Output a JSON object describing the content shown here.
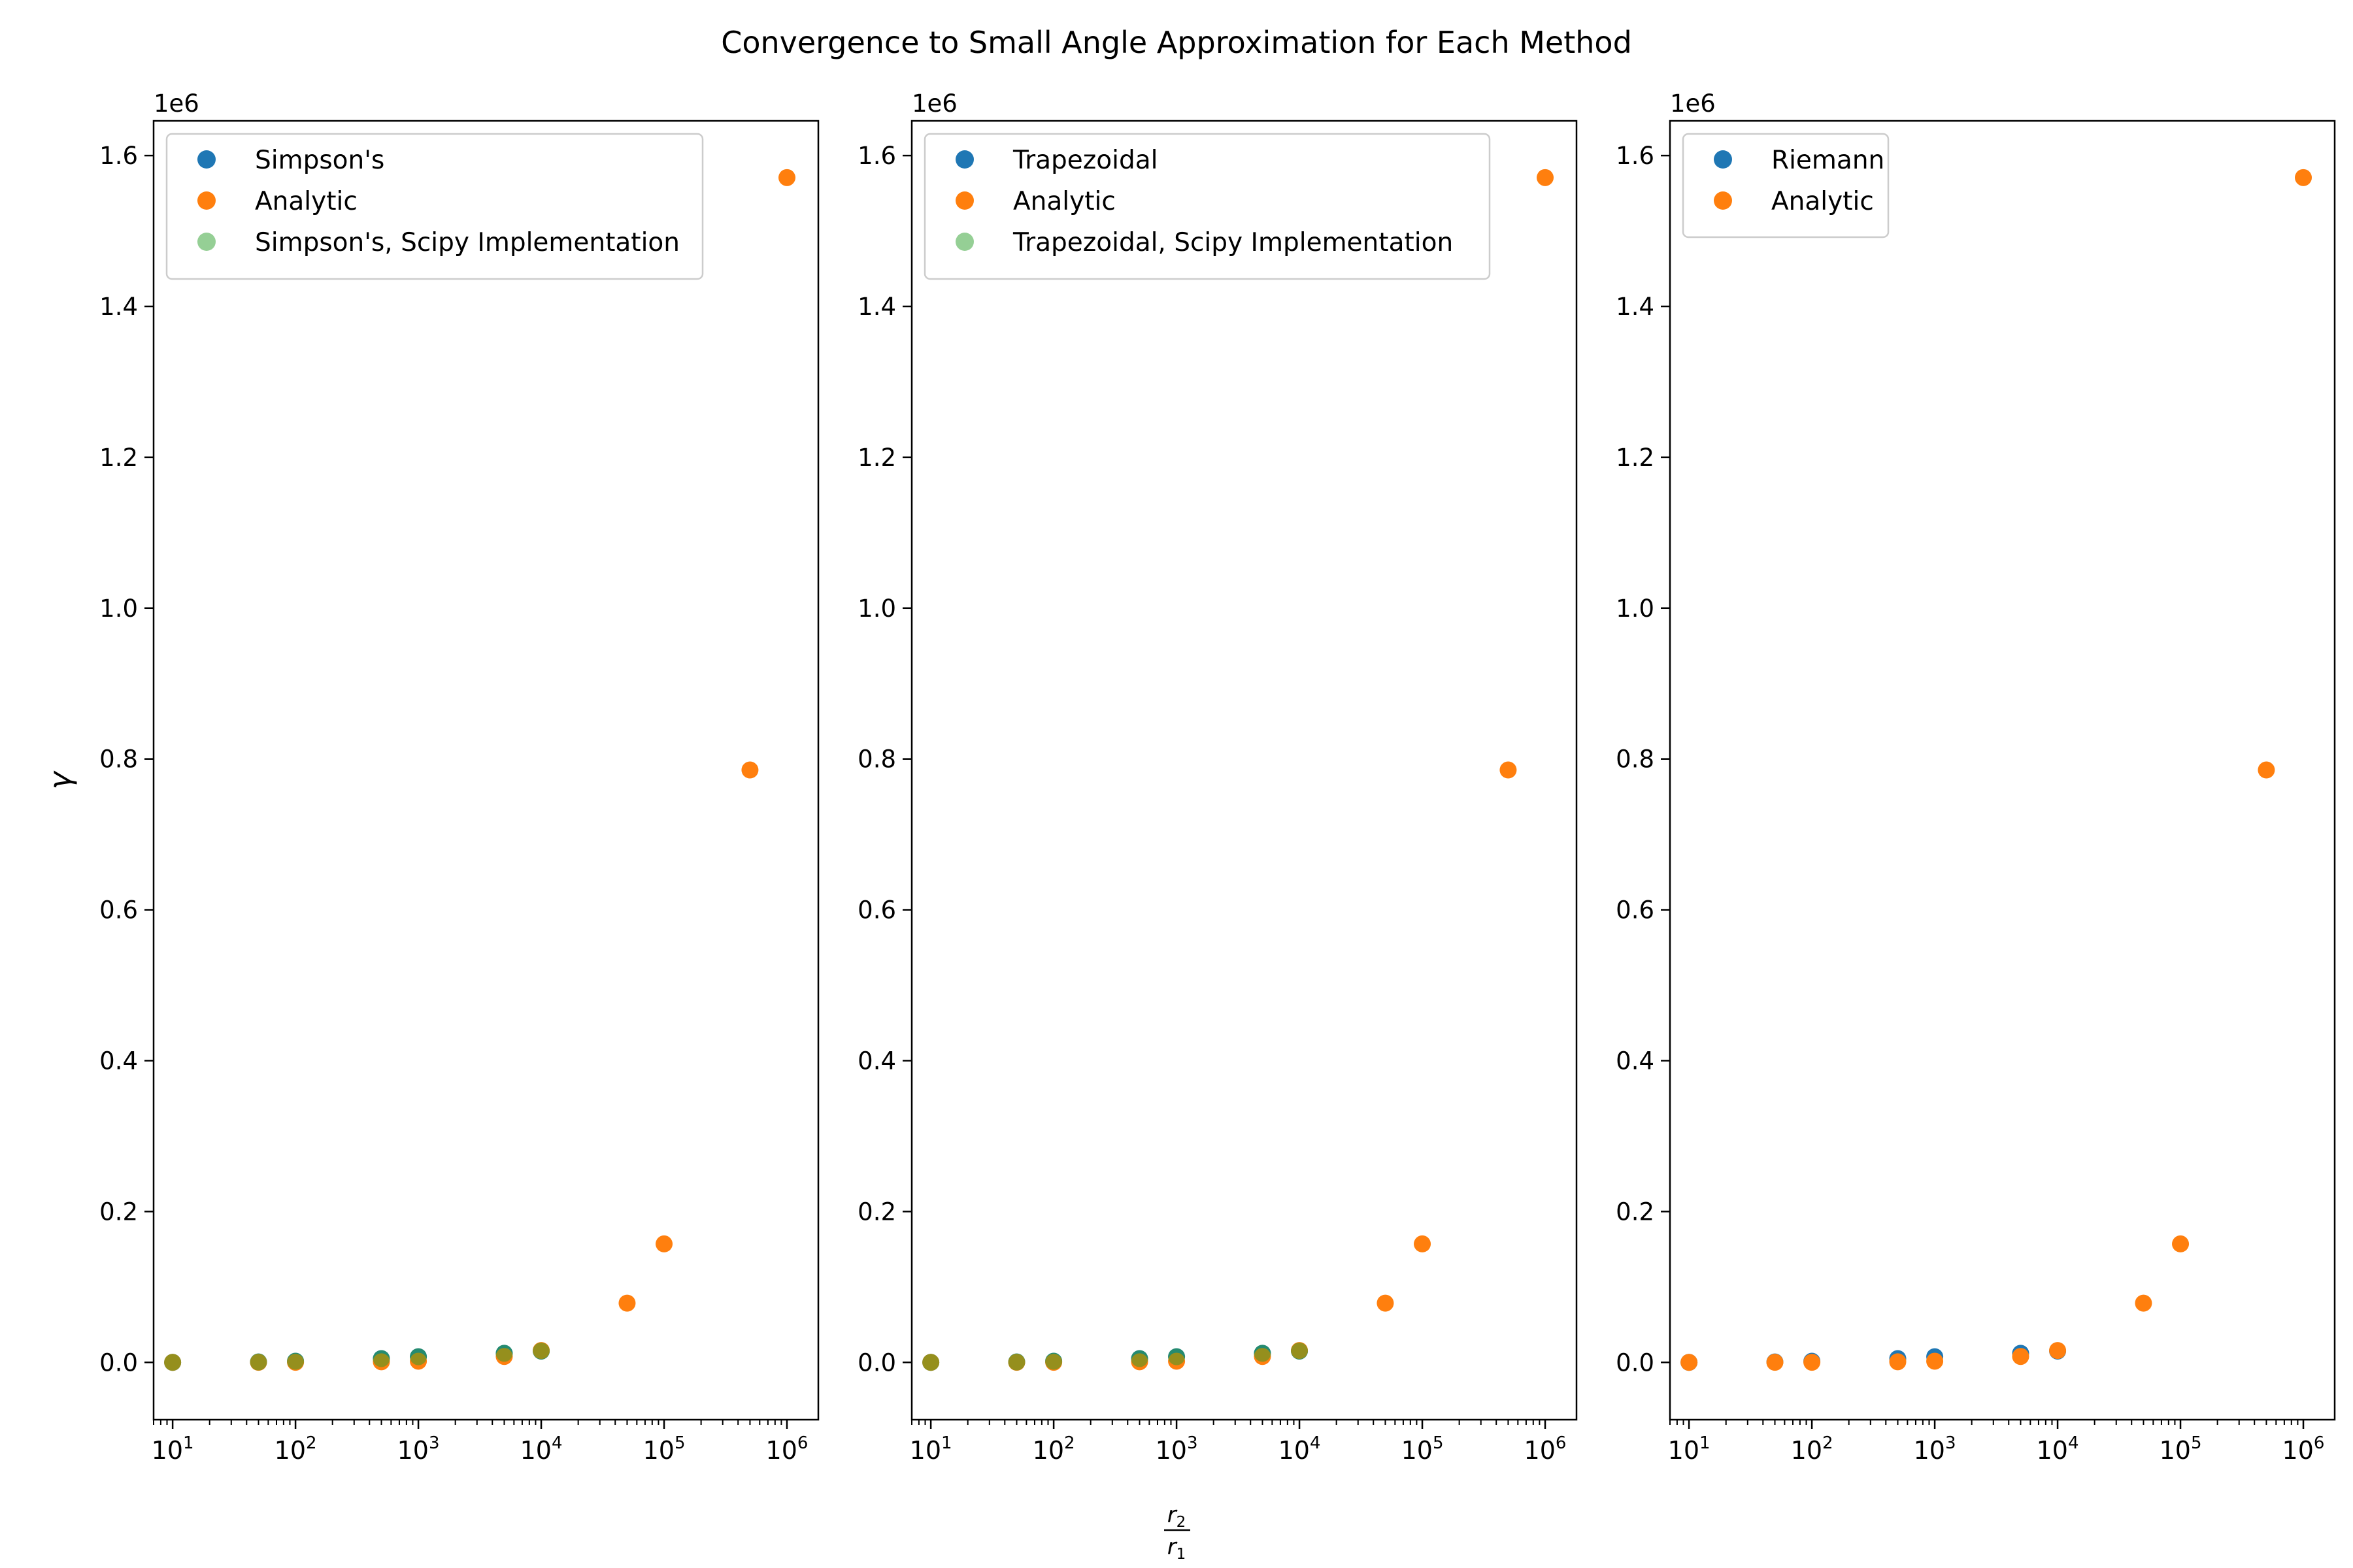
{
  "figure": {
    "suptitle": "Convergence to Small Angle Approximation for Each Method",
    "ylabel": "γ",
    "xlabel_numerator": "r",
    "xlabel_numerator_sub": "2",
    "xlabel_denominator": "r",
    "xlabel_denominator_sub": "1",
    "offset_text": "1e6"
  },
  "colors": {
    "blue": "#1f77b4",
    "orange": "#ff7f0e",
    "green": "#2ca02c"
  },
  "chart_data": [
    {
      "type": "scatter",
      "title": "",
      "xscale": "log",
      "xlim": [
        7,
        1800000
      ],
      "ylim": [
        -76000,
        1646000
      ],
      "xticks": [
        {
          "value": 10,
          "exp": "1"
        },
        {
          "value": 100,
          "exp": "2"
        },
        {
          "value": 1000,
          "exp": "3"
        },
        {
          "value": 10000,
          "exp": "4"
        },
        {
          "value": 100000,
          "exp": "5"
        },
        {
          "value": 1000000,
          "exp": "6"
        }
      ],
      "xtick_base": "10",
      "yticks": [
        {
          "value": 0,
          "label": "0.0"
        },
        {
          "value": 200000,
          "label": "0.2"
        },
        {
          "value": 400000,
          "label": "0.4"
        },
        {
          "value": 600000,
          "label": "0.6"
        },
        {
          "value": 800000,
          "label": "0.8"
        },
        {
          "value": 1000000,
          "label": "1.0"
        },
        {
          "value": 1200000,
          "label": "1.2"
        },
        {
          "value": 1400000,
          "label": "1.4"
        },
        {
          "value": 1600000,
          "label": "1.6"
        }
      ],
      "legend_position": "upper-left",
      "series": [
        {
          "name": "Simpson's",
          "color": "#1f77b4",
          "alpha": 1,
          "x": [
            10,
            50,
            100,
            500,
            1000,
            5000,
            10000
          ],
          "y": [
            0,
            500,
            1500,
            5000,
            7500,
            12000,
            15000
          ]
        },
        {
          "name": "Analytic",
          "color": "#ff7f0e",
          "alpha": 1,
          "x": [
            10,
            50,
            100,
            500,
            1000,
            5000,
            10000,
            50000,
            100000,
            500000,
            1000000
          ],
          "y": [
            16,
            79,
            157,
            785,
            1571,
            7854,
            15708,
            78540,
            157080,
            785398,
            1570796
          ]
        },
        {
          "name": "Simpson's, Scipy Implementation",
          "color": "#2ca02c",
          "alpha": 0.5,
          "x": [
            10,
            50,
            100,
            500,
            1000,
            5000,
            10000
          ],
          "y": [
            0,
            500,
            1500,
            5000,
            7500,
            12000,
            15000
          ]
        }
      ]
    },
    {
      "type": "scatter",
      "title": "",
      "xscale": "log",
      "xlim": [
        7,
        1800000
      ],
      "ylim": [
        -76000,
        1646000
      ],
      "xticks": [
        {
          "value": 10,
          "exp": "1"
        },
        {
          "value": 100,
          "exp": "2"
        },
        {
          "value": 1000,
          "exp": "3"
        },
        {
          "value": 10000,
          "exp": "4"
        },
        {
          "value": 100000,
          "exp": "5"
        },
        {
          "value": 1000000,
          "exp": "6"
        }
      ],
      "xtick_base": "10",
      "yticks": [
        {
          "value": 0,
          "label": "0.0"
        },
        {
          "value": 200000,
          "label": "0.2"
        },
        {
          "value": 400000,
          "label": "0.4"
        },
        {
          "value": 600000,
          "label": "0.6"
        },
        {
          "value": 800000,
          "label": "0.8"
        },
        {
          "value": 1000000,
          "label": "1.0"
        },
        {
          "value": 1200000,
          "label": "1.2"
        },
        {
          "value": 1400000,
          "label": "1.4"
        },
        {
          "value": 1600000,
          "label": "1.6"
        }
      ],
      "legend_position": "upper-left",
      "series": [
        {
          "name": "Trapezoidal",
          "color": "#1f77b4",
          "alpha": 1,
          "x": [
            10,
            50,
            100,
            500,
            1000,
            5000,
            10000
          ],
          "y": [
            0,
            500,
            1500,
            5000,
            7500,
            12000,
            15000
          ]
        },
        {
          "name": "Analytic",
          "color": "#ff7f0e",
          "alpha": 1,
          "x": [
            10,
            50,
            100,
            500,
            1000,
            5000,
            10000,
            50000,
            100000,
            500000,
            1000000
          ],
          "y": [
            16,
            79,
            157,
            785,
            1571,
            7854,
            15708,
            78540,
            157080,
            785398,
            1570796
          ]
        },
        {
          "name": "Trapezoidal, Scipy Implementation",
          "color": "#2ca02c",
          "alpha": 0.5,
          "x": [
            10,
            50,
            100,
            500,
            1000,
            5000,
            10000
          ],
          "y": [
            0,
            500,
            1500,
            5000,
            7500,
            12000,
            15000
          ]
        }
      ]
    },
    {
      "type": "scatter",
      "title": "",
      "xscale": "log",
      "xlim": [
        7,
        1800000
      ],
      "ylim": [
        -76000,
        1646000
      ],
      "xticks": [
        {
          "value": 10,
          "exp": "1"
        },
        {
          "value": 100,
          "exp": "2"
        },
        {
          "value": 1000,
          "exp": "3"
        },
        {
          "value": 10000,
          "exp": "4"
        },
        {
          "value": 100000,
          "exp": "5"
        },
        {
          "value": 1000000,
          "exp": "6"
        }
      ],
      "xtick_base": "10",
      "yticks": [
        {
          "value": 0,
          "label": "0.0"
        },
        {
          "value": 200000,
          "label": "0.2"
        },
        {
          "value": 400000,
          "label": "0.4"
        },
        {
          "value": 600000,
          "label": "0.6"
        },
        {
          "value": 800000,
          "label": "0.8"
        },
        {
          "value": 1000000,
          "label": "1.0"
        },
        {
          "value": 1200000,
          "label": "1.2"
        },
        {
          "value": 1400000,
          "label": "1.4"
        },
        {
          "value": 1600000,
          "label": "1.6"
        }
      ],
      "legend_position": "upper-left",
      "series": [
        {
          "name": "Riemann",
          "color": "#1f77b4",
          "alpha": 1,
          "x": [
            10,
            50,
            100,
            500,
            1000,
            5000,
            10000
          ],
          "y": [
            0,
            500,
            1500,
            5000,
            7500,
            12000,
            15000
          ]
        },
        {
          "name": "Analytic",
          "color": "#ff7f0e",
          "alpha": 1,
          "x": [
            10,
            50,
            100,
            500,
            1000,
            5000,
            10000,
            50000,
            100000,
            500000,
            1000000
          ],
          "y": [
            16,
            79,
            157,
            785,
            1571,
            7854,
            15708,
            78540,
            157080,
            785398,
            1570796
          ]
        }
      ]
    }
  ]
}
